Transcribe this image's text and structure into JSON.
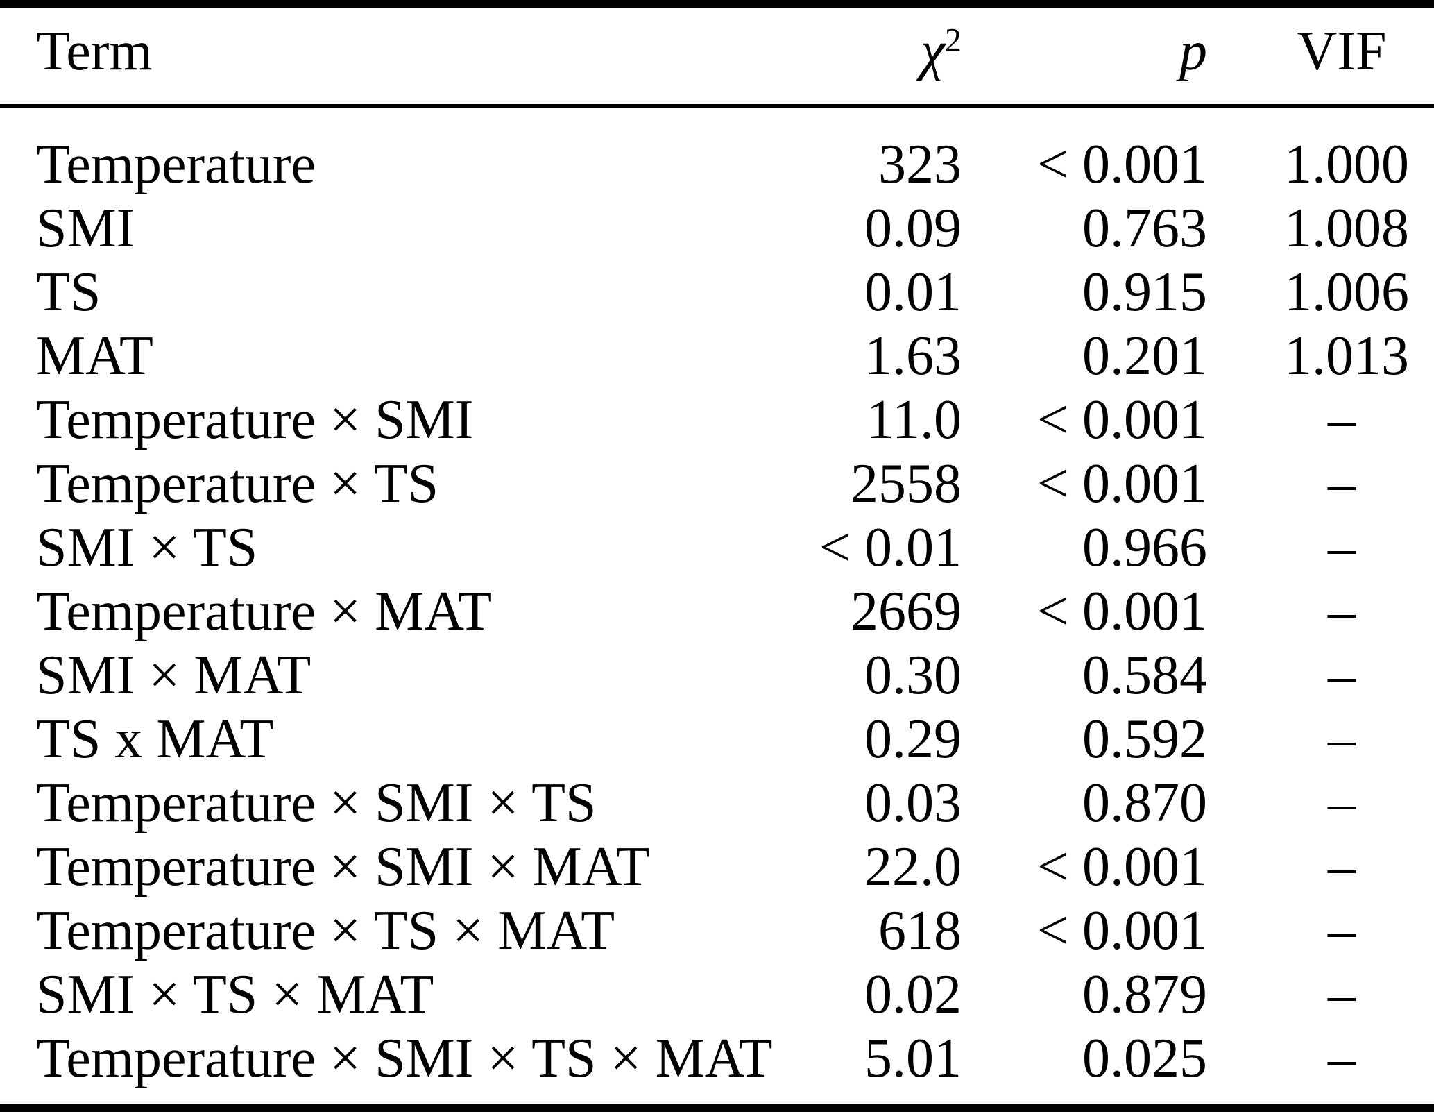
{
  "colors": {
    "text": "#000000",
    "background": "#ffffff",
    "rule": "#000000"
  },
  "table": {
    "columns": {
      "term": "Term",
      "chi2_base": "χ",
      "chi2_sup": "2",
      "p": "p",
      "vif": "VIF"
    },
    "rows": [
      {
        "term": "Temperature",
        "chi2": "323",
        "p": "< 0.001",
        "vif": "1.000"
      },
      {
        "term": "SMI",
        "chi2": "0.09",
        "p": "0.763",
        "vif": "1.008"
      },
      {
        "term": "TS",
        "chi2": "0.01",
        "p": "0.915",
        "vif": "1.006"
      },
      {
        "term": "MAT",
        "chi2": "1.63",
        "p": "0.201",
        "vif": "1.013"
      },
      {
        "term": "Temperature × SMI",
        "chi2": "11.0",
        "p": "< 0.001",
        "vif": "–"
      },
      {
        "term": "Temperature × TS",
        "chi2": "2558",
        "p": "< 0.001",
        "vif": "–"
      },
      {
        "term": "SMI × TS",
        "chi2": "< 0.01",
        "p": "0.966",
        "vif": "–"
      },
      {
        "term": "Temperature × MAT",
        "chi2": "2669",
        "p": "< 0.001",
        "vif": "–"
      },
      {
        "term": "SMI × MAT",
        "chi2": "0.30",
        "p": "0.584",
        "vif": "–"
      },
      {
        "term": "TS x MAT",
        "chi2": "0.29",
        "p": "0.592",
        "vif": "–"
      },
      {
        "term": "Temperature × SMI × TS",
        "chi2": "0.03",
        "p": "0.870",
        "vif": "–"
      },
      {
        "term": "Temperature × SMI × MAT",
        "chi2": "22.0",
        "p": "< 0.001",
        "vif": "–"
      },
      {
        "term": "Temperature × TS × MAT",
        "chi2": "618",
        "p": "< 0.001",
        "vif": "–"
      },
      {
        "term": "SMI × TS × MAT",
        "chi2": "0.02",
        "p": "0.879",
        "vif": "–"
      },
      {
        "term": "Temperature × SMI × TS × MAT",
        "chi2": "5.01",
        "p": "0.025",
        "vif": "–"
      }
    ]
  }
}
